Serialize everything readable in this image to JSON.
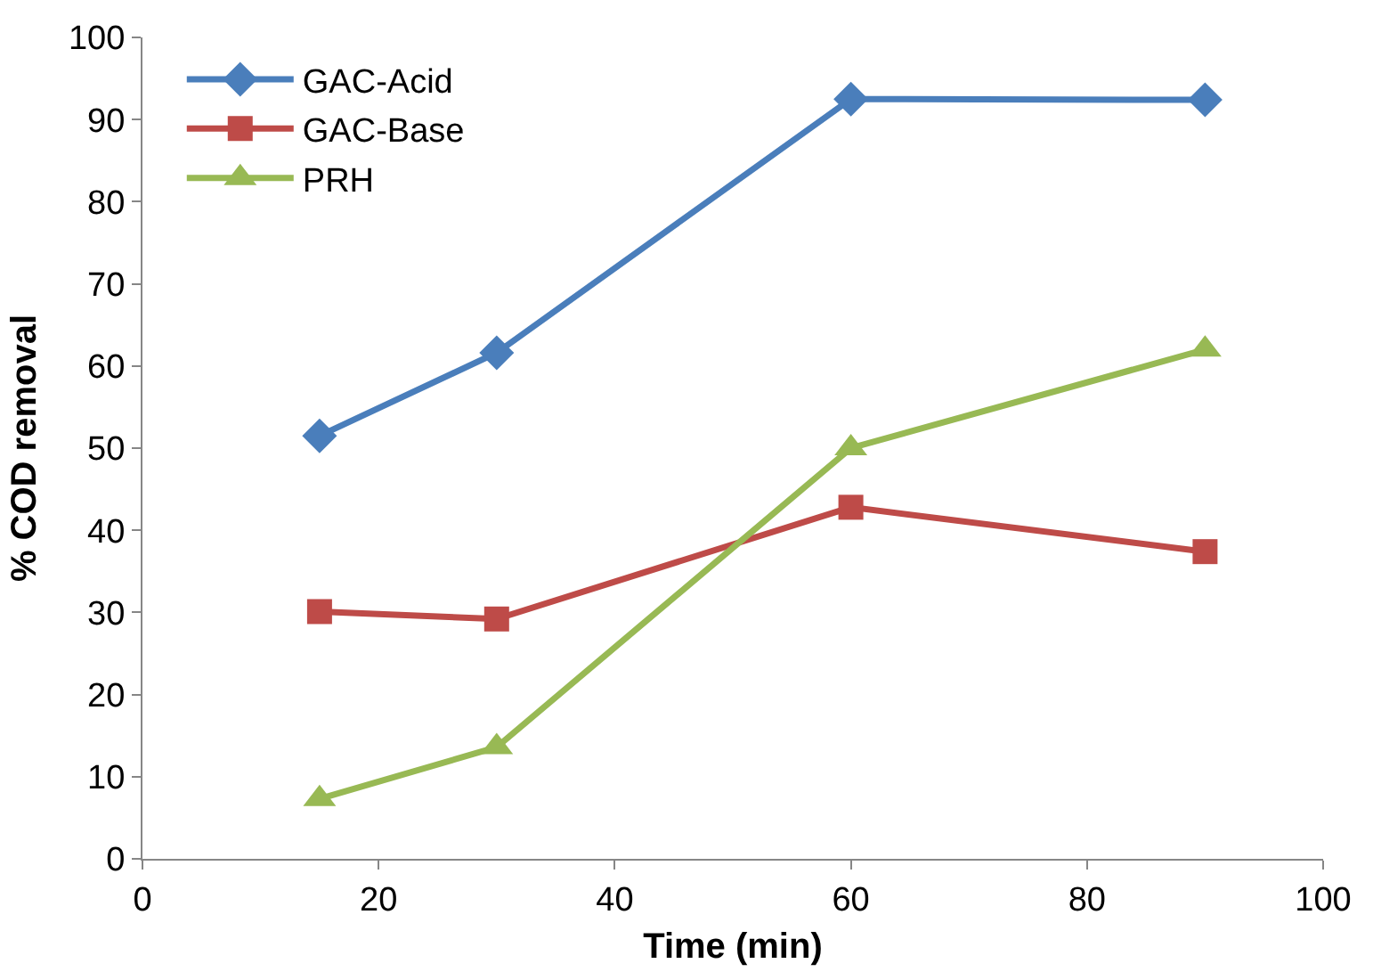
{
  "chart_data": {
    "type": "line",
    "xlabel": "Time (min)",
    "ylabel": "% COD removal",
    "x": [
      15,
      30,
      60,
      90
    ],
    "series": [
      {
        "name": "GAC-Acid",
        "color": "#4a7ebb",
        "marker": "diamond",
        "values": [
          51.5,
          61.6,
          92.5,
          92.4
        ]
      },
      {
        "name": "GAC-Base",
        "color": "#be4b48",
        "marker": "square",
        "values": [
          30.1,
          29.2,
          42.8,
          37.4
        ]
      },
      {
        "name": "PRH",
        "color": "#98b954",
        "marker": "triangle",
        "values": [
          7.3,
          13.6,
          50,
          62
        ]
      }
    ],
    "xlim": [
      0,
      100
    ],
    "xticks": [
      0,
      20,
      40,
      60,
      80,
      100
    ],
    "ylim": [
      0,
      100
    ],
    "yticks": [
      0,
      10,
      20,
      30,
      40,
      50,
      60,
      70,
      80,
      90,
      100
    ],
    "grid": false,
    "legend": "top left",
    "line_style": "solid"
  }
}
